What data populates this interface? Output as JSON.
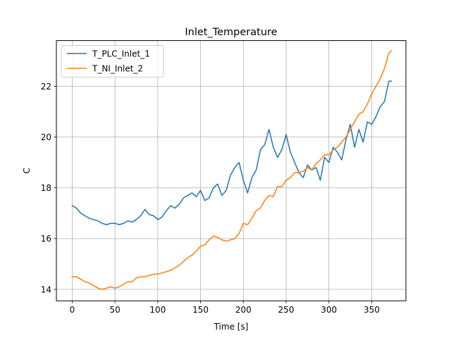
{
  "chart_data": {
    "type": "line",
    "title": "Inlet_Temperature",
    "xlabel": "Time [s]",
    "ylabel": "C",
    "xlim": [
      -18.5,
      390
    ],
    "ylim": [
      13.55,
      23.8
    ],
    "xticks": [
      0,
      50,
      100,
      150,
      200,
      250,
      300,
      350
    ],
    "yticks": [
      14,
      16,
      18,
      20,
      22
    ],
    "grid": true,
    "legend_position": "top-left",
    "series": [
      {
        "name": "T_PLC_Inlet_1",
        "color": "#1f77b4",
        "x": [
          0,
          5,
          10,
          15,
          20,
          25,
          30,
          35,
          40,
          45,
          50,
          55,
          60,
          65,
          70,
          75,
          80,
          85,
          90,
          95,
          100,
          105,
          110,
          115,
          120,
          125,
          130,
          135,
          140,
          145,
          150,
          155,
          160,
          165,
          170,
          175,
          180,
          185,
          190,
          195,
          200,
          205,
          210,
          215,
          220,
          225,
          230,
          235,
          240,
          245,
          250,
          255,
          260,
          265,
          270,
          275,
          280,
          285,
          290,
          295,
          300,
          305,
          310,
          315,
          320,
          325,
          330,
          335,
          340,
          345,
          350,
          355,
          360,
          365,
          370,
          373
        ],
        "values": [
          17.3,
          17.2,
          17.0,
          16.9,
          16.8,
          16.75,
          16.7,
          16.6,
          16.55,
          16.6,
          16.6,
          16.55,
          16.6,
          16.7,
          16.65,
          16.75,
          16.9,
          17.15,
          16.95,
          16.9,
          16.75,
          16.85,
          17.1,
          17.3,
          17.2,
          17.35,
          17.6,
          17.7,
          17.8,
          17.65,
          17.9,
          17.5,
          17.6,
          18.0,
          18.15,
          17.7,
          17.9,
          18.5,
          18.8,
          19.0,
          18.3,
          17.8,
          18.4,
          18.7,
          19.5,
          19.7,
          20.3,
          19.6,
          19.2,
          19.5,
          20.1,
          19.4,
          19.0,
          18.6,
          18.4,
          18.9,
          18.7,
          18.8,
          18.3,
          19.2,
          19.0,
          19.6,
          19.4,
          19.1,
          19.9,
          20.5,
          19.6,
          20.3,
          19.8,
          20.6,
          20.5,
          20.8,
          21.2,
          21.4,
          22.2,
          22.2
        ]
      },
      {
        "name": "T_NI_Inlet_2",
        "color": "#ff7f0e",
        "x": [
          0,
          5,
          10,
          15,
          20,
          25,
          30,
          35,
          40,
          45,
          50,
          55,
          60,
          65,
          70,
          75,
          80,
          85,
          90,
          95,
          100,
          105,
          110,
          115,
          120,
          125,
          130,
          135,
          140,
          145,
          150,
          155,
          160,
          165,
          170,
          175,
          180,
          185,
          190,
          195,
          200,
          205,
          210,
          215,
          220,
          225,
          230,
          235,
          240,
          245,
          250,
          255,
          260,
          265,
          270,
          275,
          280,
          285,
          290,
          295,
          300,
          305,
          310,
          315,
          320,
          325,
          330,
          335,
          340,
          345,
          350,
          355,
          360,
          365,
          370,
          373
        ],
        "values": [
          14.5,
          14.5,
          14.4,
          14.3,
          14.25,
          14.15,
          14.05,
          14.0,
          14.05,
          14.1,
          14.05,
          14.1,
          14.2,
          14.3,
          14.3,
          14.45,
          14.5,
          14.5,
          14.55,
          14.6,
          14.6,
          14.65,
          14.7,
          14.75,
          14.85,
          14.95,
          15.1,
          15.25,
          15.35,
          15.5,
          15.7,
          15.75,
          15.95,
          16.1,
          16.05,
          15.95,
          15.9,
          15.95,
          16.0,
          16.2,
          16.6,
          16.55,
          16.8,
          17.1,
          17.2,
          17.5,
          17.7,
          17.65,
          18.05,
          18.05,
          18.3,
          18.4,
          18.6,
          18.6,
          18.65,
          18.8,
          18.7,
          18.95,
          19.1,
          19.3,
          19.3,
          19.5,
          19.6,
          19.8,
          20.0,
          20.3,
          20.6,
          20.9,
          21.0,
          21.3,
          21.7,
          22.0,
          22.3,
          22.7,
          23.3,
          23.4
        ]
      }
    ]
  }
}
